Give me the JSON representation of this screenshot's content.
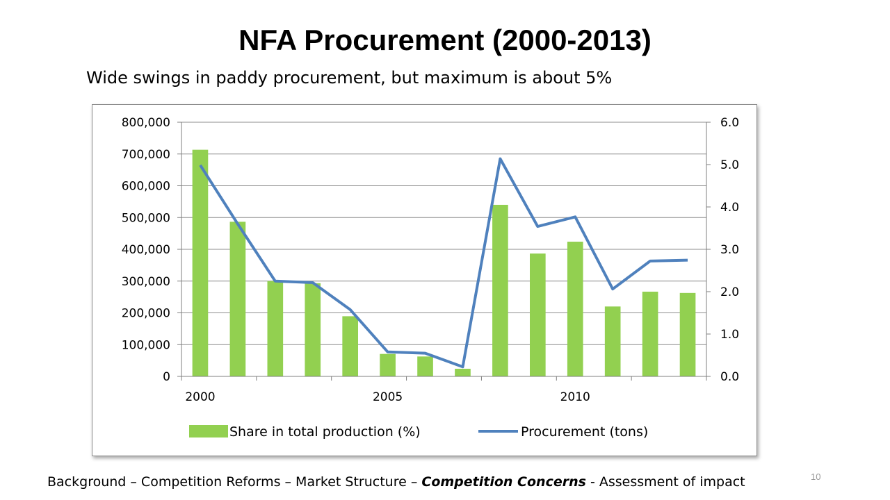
{
  "slide": {
    "title": "NFA Procurement (2000-2013)",
    "subtitle": "Wide swings in paddy procurement, but maximum is about 5%",
    "page_number": "10"
  },
  "footer": {
    "part1": "Background – Competition Reforms – Market Structure – ",
    "part2": "Competition Concerns",
    "part3": " - Assessment of impact"
  },
  "chart_data": {
    "type": "bar",
    "categories": [
      2000,
      2001,
      2002,
      2003,
      2004,
      2005,
      2006,
      2007,
      2008,
      2009,
      2010,
      2011,
      2012,
      2013
    ],
    "x_tick_labels": [
      "2000",
      "2005",
      "2010"
    ],
    "y_left": {
      "min": 0,
      "max": 800000,
      "tick_labels": [
        "0",
        "100,000",
        "200,000",
        "300,000",
        "400,000",
        "500,000",
        "600,000",
        "700,000",
        "800,000"
      ]
    },
    "y_right": {
      "min": 0,
      "max": 6,
      "tick_labels": [
        "0.0",
        "1.0",
        "2.0",
        "3.0",
        "4.0",
        "5.0",
        "6.0"
      ]
    },
    "series": [
      {
        "name": "Share in total production (%)",
        "kind": "bar",
        "color": "#92d050",
        "values": [
          5.35,
          3.65,
          2.25,
          2.2,
          1.42,
          0.53,
          0.47,
          0.18,
          4.05,
          2.9,
          3.18,
          1.65,
          2.0,
          1.97
        ]
      },
      {
        "name": "Procurement (tons)",
        "kind": "line",
        "color": "#4f81bd",
        "values": [
          665000,
          480000,
          300000,
          295000,
          210000,
          77000,
          73000,
          30000,
          685000,
          472000,
          502000,
          275000,
          363000,
          366000
        ]
      }
    ],
    "grid": true,
    "legend_position": "bottom"
  }
}
